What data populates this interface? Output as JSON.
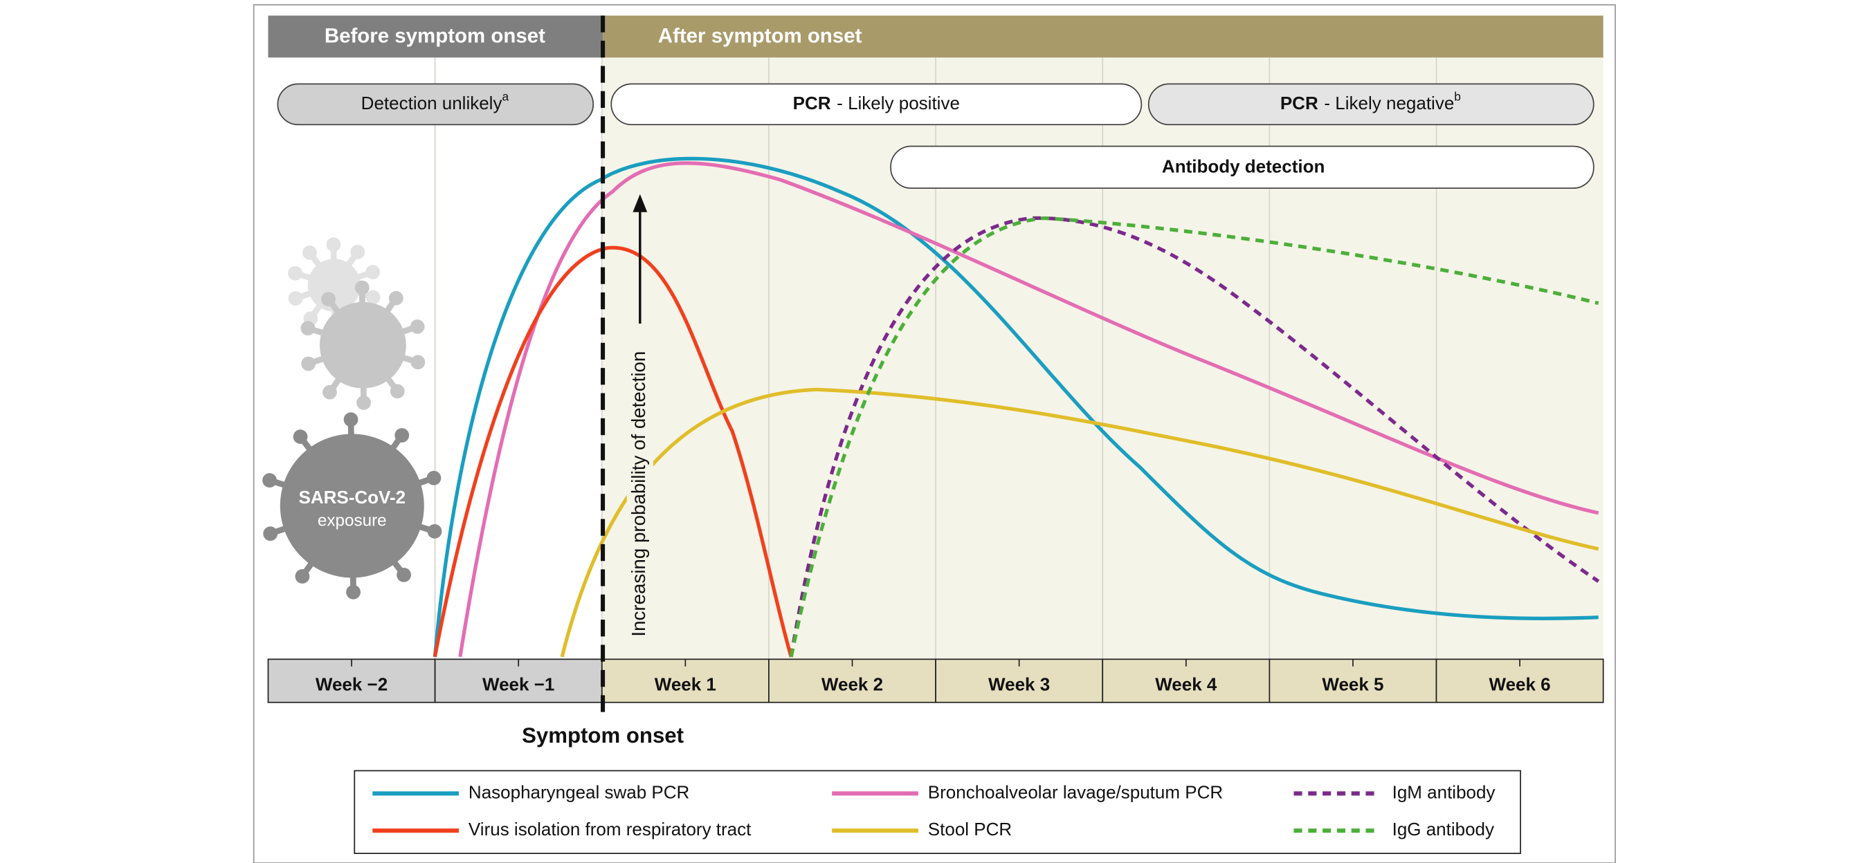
{
  "header": {
    "before": "Before symptom onset",
    "after": "After symptom onset"
  },
  "bands": {
    "detection_unlikely": {
      "text": "Detection unlikely",
      "note": "a"
    },
    "pcr_positive": {
      "bold": "PCR",
      "text": "- Likely positive"
    },
    "pcr_negative": {
      "bold": "PCR",
      "text": "- Likely negative",
      "note": "b"
    },
    "antibody": {
      "text": "Antibody detection"
    }
  },
  "exposure": {
    "line1": "SARS-CoV-2",
    "line2": "exposure"
  },
  "y_label": "Increasing probability of detection",
  "weeks": [
    "Week −2",
    "Week −1",
    "Week 1",
    "Week 2",
    "Week 3",
    "Week 4",
    "Week 5",
    "Week 6"
  ],
  "onset_label": "Symptom onset",
  "legend": [
    {
      "name": "Nasopharyngeal swab PCR",
      "color": "#1a9ec0",
      "dashed": false
    },
    {
      "name": "Bronchoalveolar lavage/sputum PCR",
      "color": "#e36db3",
      "dashed": false
    },
    {
      "name": "IgM antibody",
      "color": "#7b2a8c",
      "dashed": true
    },
    {
      "name": "Virus isolation from respiratory tract",
      "color": "#f0401e",
      "dashed": false
    },
    {
      "name": "Stool PCR",
      "color": "#e0bd2a",
      "dashed": false
    },
    {
      "name": "IgG antibody",
      "color": "#4caf3a",
      "dashed": true
    }
  ]
}
